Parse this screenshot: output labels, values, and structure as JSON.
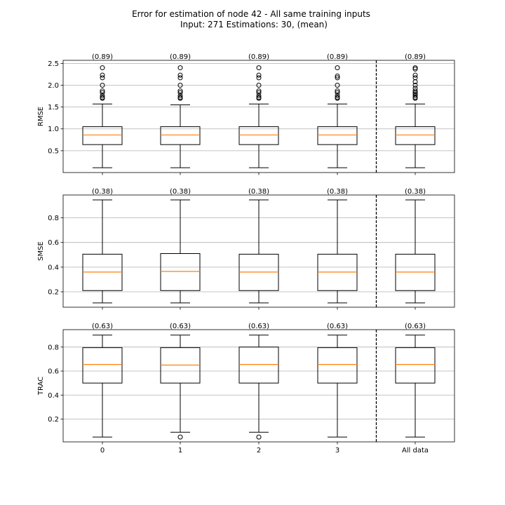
{
  "title_line1": "Error for estimation of node 42 - All same training inputs",
  "title_line2": "Input: 271   Estimations: 30,  (mean)",
  "colors": {
    "box": "#000000",
    "median": "#ff7f0e",
    "grid": "#b0b0b0",
    "separator": "#000000"
  },
  "chart_data": [
    {
      "type": "box",
      "ylabel": "RMSE",
      "categories": [
        "0",
        "1",
        "2",
        "3",
        "All data"
      ],
      "ylim": [
        0.0,
        2.57
      ],
      "yticks": [
        0.5,
        1.0,
        1.5,
        2.0,
        2.5
      ],
      "ytick_labels": [
        "0.5",
        "1.0",
        "1.5",
        "2.0",
        "2.5"
      ],
      "grid": "y",
      "separator_after_index": 3,
      "mean_labels": [
        "(0.89)",
        "(0.89)",
        "(0.89)",
        "(0.89)",
        "(0.89)"
      ],
      "boxes": [
        {
          "whisker_low": 0.11,
          "q1": 0.64,
          "median": 0.86,
          "q3": 1.05,
          "whisker_high": 1.57,
          "outliers": [
            1.7,
            1.72,
            1.76,
            1.83,
            1.87,
            2.0,
            2.17,
            2.23,
            2.4
          ]
        },
        {
          "whisker_low": 0.11,
          "q1": 0.64,
          "median": 0.86,
          "q3": 1.05,
          "whisker_high": 1.55,
          "outliers": [
            1.7,
            1.72,
            1.76,
            1.83,
            1.87,
            2.0,
            2.17,
            2.23,
            2.4
          ]
        },
        {
          "whisker_low": 0.11,
          "q1": 0.64,
          "median": 0.86,
          "q3": 1.05,
          "whisker_high": 1.57,
          "outliers": [
            1.7,
            1.72,
            1.76,
            1.83,
            1.87,
            2.0,
            2.17,
            2.23,
            2.4
          ]
        },
        {
          "whisker_low": 0.11,
          "q1": 0.64,
          "median": 0.86,
          "q3": 1.05,
          "whisker_high": 1.57,
          "outliers": [
            1.7,
            1.72,
            1.76,
            1.83,
            1.87,
            2.0,
            2.17,
            2.21,
            2.4
          ]
        },
        {
          "whisker_low": 0.11,
          "q1": 0.64,
          "median": 0.86,
          "q3": 1.05,
          "whisker_high": 1.57,
          "outliers": [
            1.7,
            1.72,
            1.76,
            1.8,
            1.83,
            1.87,
            1.93,
            2.0,
            2.08,
            2.17,
            2.23,
            2.37,
            2.4
          ]
        }
      ]
    },
    {
      "type": "box",
      "ylabel": "SMSE",
      "categories": [
        "0",
        "1",
        "2",
        "3",
        "All data"
      ],
      "ylim": [
        0.075,
        0.985
      ],
      "yticks": [
        0.2,
        0.4,
        0.6,
        0.8
      ],
      "ytick_labels": [
        "0.2",
        "0.4",
        "0.6",
        "0.8"
      ],
      "grid": "y",
      "separator_after_index": 3,
      "mean_labels": [
        "(0.38)",
        "(0.38)",
        "(0.38)",
        "(0.38)",
        "(0.38)"
      ],
      "boxes": [
        {
          "whisker_low": 0.11,
          "q1": 0.21,
          "median": 0.36,
          "q3": 0.505,
          "whisker_high": 0.945,
          "outliers": []
        },
        {
          "whisker_low": 0.11,
          "q1": 0.21,
          "median": 0.365,
          "q3": 0.51,
          "whisker_high": 0.945,
          "outliers": []
        },
        {
          "whisker_low": 0.11,
          "q1": 0.21,
          "median": 0.36,
          "q3": 0.505,
          "whisker_high": 0.945,
          "outliers": []
        },
        {
          "whisker_low": 0.11,
          "q1": 0.21,
          "median": 0.36,
          "q3": 0.505,
          "whisker_high": 0.945,
          "outliers": []
        },
        {
          "whisker_low": 0.11,
          "q1": 0.21,
          "median": 0.36,
          "q3": 0.505,
          "whisker_high": 0.945,
          "outliers": []
        }
      ]
    },
    {
      "type": "box",
      "ylabel": "TRAC",
      "categories": [
        "0",
        "1",
        "2",
        "3",
        "All data"
      ],
      "ylim": [
        0.01,
        0.945
      ],
      "yticks": [
        0.2,
        0.4,
        0.6,
        0.8
      ],
      "ytick_labels": [
        "0.2",
        "0.4",
        "0.6",
        "0.8"
      ],
      "grid": "y",
      "separator_after_index": 3,
      "mean_labels": [
        "(0.63)",
        "(0.63)",
        "(0.63)",
        "(0.63)",
        "(0.63)"
      ],
      "xtick_labels": [
        "0",
        "1",
        "2",
        "3",
        "All data"
      ],
      "boxes": [
        {
          "whisker_low": 0.05,
          "q1": 0.5,
          "median": 0.655,
          "q3": 0.795,
          "whisker_high": 0.9,
          "outliers": []
        },
        {
          "whisker_low": 0.09,
          "q1": 0.5,
          "median": 0.65,
          "q3": 0.795,
          "whisker_high": 0.9,
          "outliers": [
            0.05
          ]
        },
        {
          "whisker_low": 0.09,
          "q1": 0.5,
          "median": 0.655,
          "q3": 0.8,
          "whisker_high": 0.9,
          "outliers": [
            0.05
          ]
        },
        {
          "whisker_low": 0.05,
          "q1": 0.5,
          "median": 0.655,
          "q3": 0.795,
          "whisker_high": 0.9,
          "outliers": []
        },
        {
          "whisker_low": 0.05,
          "q1": 0.5,
          "median": 0.655,
          "q3": 0.795,
          "whisker_high": 0.9,
          "outliers": []
        }
      ]
    }
  ]
}
